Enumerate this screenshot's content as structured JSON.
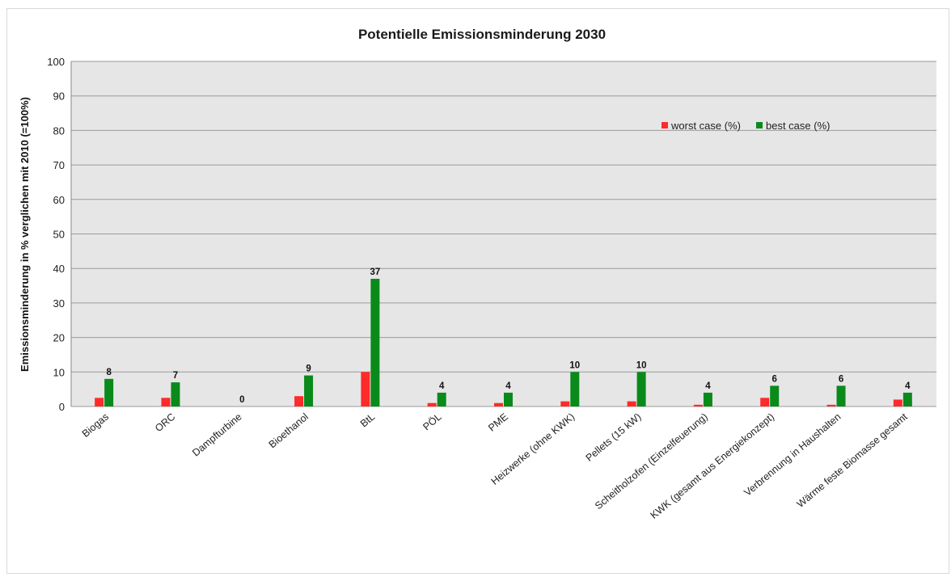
{
  "chart_data": {
    "type": "bar",
    "title": "Potentielle Emissionsminderung 2030",
    "xlabel": "",
    "ylabel": "Emissionsminderung in % verglichen mit 2010 (=100%)",
    "ylim": [
      0,
      100
    ],
    "yticks": [
      0,
      10,
      20,
      30,
      40,
      50,
      60,
      70,
      80,
      90,
      100
    ],
    "grid": true,
    "legend_position": "top-right",
    "categories": [
      "Biogas",
      "ORC",
      "Dampfturbine",
      "Bioethanol",
      "BtL",
      "PÖL",
      "PME",
      "Heizwerke (ohne KWK)",
      "Pellets (15 kW)",
      "Scheitholzofen (Einzelfeuerung)",
      "KWK (gesamt aus Energiekonzept)",
      "Verbrennung in Haushalten",
      "Wärme feste Biomasse gesamt"
    ],
    "series": [
      {
        "name": "worst case (%)",
        "color": "#ff2a2a",
        "values": [
          2.5,
          2.5,
          0,
          3,
          10,
          1,
          1,
          1.5,
          1.5,
          0.5,
          2.5,
          0.5,
          2
        ]
      },
      {
        "name": "best case (%)",
        "color": "#0a8a1a",
        "values": [
          8,
          7,
          0,
          9,
          37,
          4,
          4,
          10,
          10,
          4,
          6,
          6,
          4
        ],
        "data_labels": [
          "8",
          "7",
          "0",
          "9",
          "37",
          "4",
          "4",
          "10",
          "10",
          "4",
          "6",
          "6",
          "4"
        ]
      }
    ]
  }
}
